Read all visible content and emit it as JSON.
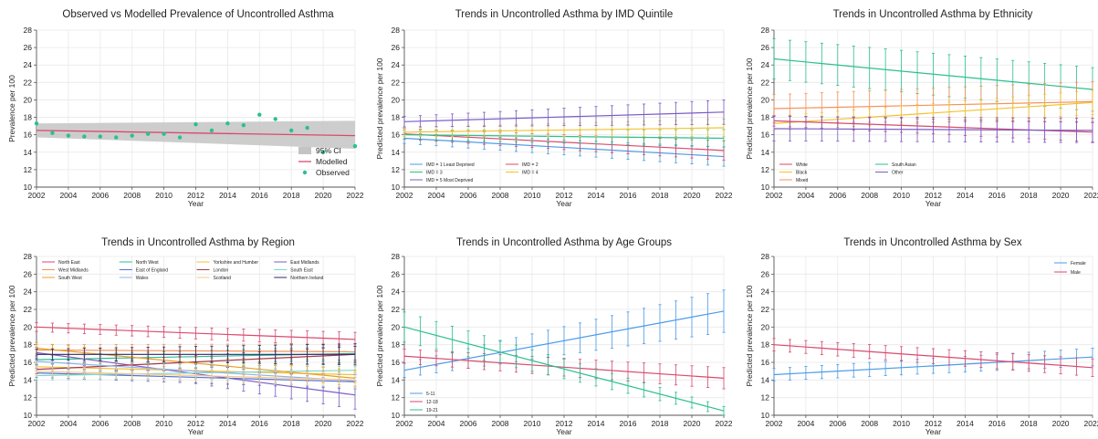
{
  "colors": {
    "grid": "#e8e8e8",
    "axis": "#555555",
    "ci": "#c4c4c4",
    "modelled": "#d94a6e",
    "observed": "#2bbf91"
  },
  "chart_data": [
    {
      "id": "p1",
      "type": "line",
      "title": "Observed vs Modelled Prevalence of Uncontrolled Asthma",
      "xlabel": "Year",
      "ylabel": "Prevalence per 100",
      "xlim": [
        2002,
        2022
      ],
      "ylim": [
        10,
        28
      ],
      "xticks": [
        "2002",
        "2004",
        "2006",
        "2008",
        "2010",
        "2012",
        "2014",
        "2016",
        "2018",
        "2020",
        "2022"
      ],
      "yticks": [
        "10",
        "12",
        "14",
        "16",
        "18",
        "20",
        "22",
        "24",
        "26",
        "28"
      ],
      "grid": true,
      "legend_position": "bottom-right",
      "legend": [
        {
          "label": "95% CI",
          "kind": "band",
          "color": "#c4c4c4"
        },
        {
          "label": "Modelled",
          "kind": "line",
          "color": "#d94a6e"
        },
        {
          "label": "Observed",
          "kind": "dot",
          "color": "#2bbf91"
        }
      ],
      "band": {
        "x": [
          2002,
          2022
        ],
        "lower": [
          15.7,
          14.4
        ],
        "upper": [
          17.3,
          17.6
        ]
      },
      "series": [
        {
          "kind": "line",
          "color": "#d94a6e",
          "x": [
            2002,
            2022
          ],
          "y": [
            16.5,
            15.9
          ]
        },
        {
          "kind": "dots",
          "color": "#2bbf91",
          "x": [
            2002,
            2003,
            2004,
            2005,
            2006,
            2007,
            2008,
            2009,
            2010,
            2011,
            2012,
            2013,
            2014,
            2015,
            2016,
            2017,
            2018,
            2019,
            2020,
            2022
          ],
          "y": [
            17.3,
            16.2,
            15.9,
            15.8,
            15.8,
            15.7,
            15.9,
            16.1,
            16.1,
            15.7,
            17.2,
            16.5,
            17.3,
            17.1,
            18.3,
            17.8,
            16.5,
            16.8,
            14.0,
            14.7
          ]
        }
      ]
    },
    {
      "id": "p2",
      "type": "line",
      "title": "Trends in Uncontrolled Asthma by IMD Quintile",
      "xlabel": "Year",
      "ylabel": "Predicted prevalence per 100",
      "xlim": [
        2002,
        2022
      ],
      "ylim": [
        10,
        28
      ],
      "xticks": [
        "2002",
        "2004",
        "2006",
        "2008",
        "2010",
        "2012",
        "2014",
        "2016",
        "2018",
        "2020",
        "2022"
      ],
      "yticks": [
        "10",
        "12",
        "14",
        "16",
        "18",
        "20",
        "22",
        "24",
        "26",
        "28"
      ],
      "grid": true,
      "legend_position": "bottom-left",
      "legend_cols": 2,
      "legend": [
        {
          "label": "IMD = 1 Least Deprived",
          "color": "#4c9be8"
        },
        {
          "label": "IMD = 2",
          "color": "#d94a6e"
        },
        {
          "label": "IMD = 3",
          "color": "#2bbf91"
        },
        {
          "label": "IMD = 4",
          "color": "#f2c230"
        },
        {
          "label": "IMD = 5 Most Deprived",
          "color": "#7b5cc4"
        }
      ],
      "series": [
        {
          "color": "#4c9be8",
          "start": 15.6,
          "end": 13.5,
          "ci0": 0.6,
          "ci1": 1.1
        },
        {
          "color": "#d94a6e",
          "start": 16.1,
          "end": 14.2,
          "ci0": 0.6,
          "ci1": 1.1
        },
        {
          "color": "#2bbf91",
          "start": 16.0,
          "end": 15.6,
          "ci0": 0.5,
          "ci1": 1.0
        },
        {
          "color": "#f2c230",
          "start": 16.3,
          "end": 16.8,
          "ci0": 0.5,
          "ci1": 1.0
        },
        {
          "color": "#7b5cc4",
          "start": 17.5,
          "end": 18.6,
          "ci0": 0.6,
          "ci1": 1.4
        }
      ]
    },
    {
      "id": "p3",
      "type": "line",
      "title": "Trends in Uncontrolled Asthma by Ethnicity",
      "xlabel": "Year",
      "ylabel": "Predicted prevalence per 100",
      "xlim": [
        2002,
        2022
      ],
      "ylim": [
        10,
        28
      ],
      "xticks": [
        "2002",
        "2004",
        "2006",
        "2008",
        "2010",
        "2012",
        "2014",
        "2016",
        "2018",
        "2020",
        "2022"
      ],
      "yticks": [
        "10",
        "12",
        "14",
        "16",
        "18",
        "20",
        "22",
        "24",
        "26",
        "28"
      ],
      "grid": true,
      "legend_position": "bottom-left",
      "legend_cols": 2,
      "legend": [
        {
          "label": "White",
          "color": "#d94a6e"
        },
        {
          "label": "South Asian",
          "color": "#2bbf91"
        },
        {
          "label": "Black",
          "color": "#f2c230"
        },
        {
          "label": "Other",
          "color": "#7b5cc4"
        },
        {
          "label": "Mixed",
          "color": "#f4915a"
        }
      ],
      "series": [
        {
          "color": "#2bbf91",
          "start": 24.7,
          "end": 21.2,
          "ci0": 2.3,
          "ci1": 2.5
        },
        {
          "color": "#f4915a",
          "start": 19.0,
          "end": 19.8,
          "ci0": 1.6,
          "ci1": 2.3
        },
        {
          "color": "#f2c230",
          "start": 17.3,
          "end": 19.7,
          "ci0": 0.8,
          "ci1": 1.4
        },
        {
          "color": "#d94a6e",
          "start": 17.6,
          "end": 16.3,
          "ci0": 0.6,
          "ci1": 1.1
        },
        {
          "color": "#7b5cc4",
          "start": 16.7,
          "end": 16.5,
          "ci0": 1.4,
          "ci1": 1.4
        }
      ]
    },
    {
      "id": "p4",
      "type": "line",
      "title": "Trends in Uncontrolled Asthma by Region",
      "xlabel": "Year",
      "ylabel": "Predicted prevalence per 100",
      "xlim": [
        2002,
        2022
      ],
      "ylim": [
        10,
        28
      ],
      "xticks": [
        "2002",
        "2004",
        "2006",
        "2008",
        "2010",
        "2012",
        "2014",
        "2016",
        "2018",
        "2020",
        "2022"
      ],
      "yticks": [
        "10",
        "12",
        "14",
        "16",
        "18",
        "20",
        "22",
        "24",
        "26",
        "28"
      ],
      "grid": true,
      "legend_position": "top",
      "legend_cols": 4,
      "legend": [
        {
          "label": "North East",
          "color": "#d94a6e"
        },
        {
          "label": "North West",
          "color": "#2bbf91"
        },
        {
          "label": "Yorkshire and Humber",
          "color": "#f2c230"
        },
        {
          "label": "East Midlands",
          "color": "#7b5cc4"
        },
        {
          "label": "West Midlands",
          "color": "#f4915a"
        },
        {
          "label": "East of England",
          "color": "#5a6fd6"
        },
        {
          "label": "London",
          "color": "#a83a4a"
        },
        {
          "label": "South East",
          "color": "#7ad6c8"
        },
        {
          "label": "South West",
          "color": "#e8a020"
        },
        {
          "label": "Wales",
          "color": "#8fb4e8"
        },
        {
          "label": "Scotland",
          "color": "#f5c88a"
        },
        {
          "label": "Northern Ireland",
          "color": "#2d2a6e"
        }
      ],
      "series": [
        {
          "color": "#d94a6e",
          "start": 20.0,
          "end": 18.6,
          "ci0": 0.5,
          "ci1": 0.8
        },
        {
          "color": "#2bbf91",
          "start": 16.3,
          "end": 17.0,
          "ci0": 0.5,
          "ci1": 0.8
        },
        {
          "color": "#f2c230",
          "start": 15.5,
          "end": 14.6,
          "ci0": 0.5,
          "ci1": 0.9
        },
        {
          "color": "#7b5cc4",
          "start": 17.1,
          "end": 12.3,
          "ci0": 0.6,
          "ci1": 1.6
        },
        {
          "color": "#f4915a",
          "start": 17.4,
          "end": 17.2,
          "ci0": 0.6,
          "ci1": 0.9
        },
        {
          "color": "#5a6fd6",
          "start": 14.8,
          "end": 13.8,
          "ci0": 0.5,
          "ci1": 0.8
        },
        {
          "color": "#a83a4a",
          "start": 15.2,
          "end": 16.9,
          "ci0": 0.5,
          "ci1": 0.9
        },
        {
          "color": "#7ad6c8",
          "start": 14.5,
          "end": 15.1,
          "ci0": 0.5,
          "ci1": 0.8
        },
        {
          "color": "#e8a020",
          "start": 17.6,
          "end": 14.2,
          "ci0": 0.6,
          "ci1": 0.9
        },
        {
          "color": "#8fb4e8",
          "start": 16.1,
          "end": 13.9,
          "ci0": 0.6,
          "ci1": 0.9
        },
        {
          "color": "#f5c88a",
          "start": 15.0,
          "end": 14.0,
          "ci0": 0.5,
          "ci1": 0.8
        },
        {
          "color": "#2d2a6e",
          "start": 16.9,
          "end": 16.9,
          "ci0": 0.6,
          "ci1": 1.2
        }
      ]
    },
    {
      "id": "p5",
      "type": "line",
      "title": "Trends in Uncontrolled Asthma by Age Groups",
      "xlabel": "Year",
      "ylabel": "Predicted prevalence per 100",
      "xlim": [
        2002,
        2022
      ],
      "ylim": [
        10,
        28
      ],
      "xticks": [
        "2002",
        "2004",
        "2006",
        "2008",
        "2010",
        "2012",
        "2014",
        "2016",
        "2018",
        "2020",
        "2022"
      ],
      "yticks": [
        "10",
        "12",
        "14",
        "16",
        "18",
        "20",
        "22",
        "24",
        "26",
        "28"
      ],
      "grid": true,
      "legend_position": "bottom-left",
      "legend_cols": 1,
      "legend": [
        {
          "label": "5-11",
          "color": "#4c9be8"
        },
        {
          "label": "12-18",
          "color": "#d94a6e"
        },
        {
          "label": "19-21",
          "color": "#2bbf91"
        }
      ],
      "series": [
        {
          "color": "#4c9be8",
          "start": 15.1,
          "end": 21.8,
          "ci0": 0.8,
          "ci1": 2.4
        },
        {
          "color": "#d94a6e",
          "start": 16.7,
          "end": 14.2,
          "ci0": 0.8,
          "ci1": 1.2
        },
        {
          "color": "#2bbf91",
          "start": 20.0,
          "end": 10.5,
          "ci0": 1.7,
          "ci1": 0.5
        }
      ]
    },
    {
      "id": "p6",
      "type": "line",
      "title": "Trends in Uncontrolled Asthma by Sex",
      "xlabel": "Year",
      "ylabel": "Predicted prevalence per 100",
      "xlim": [
        2002,
        2022
      ],
      "ylim": [
        10,
        28
      ],
      "xticks": [
        "2002",
        "2004",
        "2006",
        "2008",
        "2010",
        "2012",
        "2014",
        "2016",
        "2018",
        "2020",
        "2022"
      ],
      "yticks": [
        "10",
        "12",
        "14",
        "16",
        "18",
        "20",
        "22",
        "24",
        "26",
        "28"
      ],
      "grid": true,
      "legend_position": "top-right",
      "legend_cols": 1,
      "legend": [
        {
          "label": "Female",
          "color": "#4c9be8"
        },
        {
          "label": "Male",
          "color": "#d94a6e"
        }
      ],
      "series": [
        {
          "color": "#4c9be8",
          "start": 14.6,
          "end": 16.6,
          "ci0": 0.7,
          "ci1": 1.0
        },
        {
          "color": "#d94a6e",
          "start": 18.0,
          "end": 15.4,
          "ci0": 0.7,
          "ci1": 1.0
        }
      ]
    }
  ]
}
